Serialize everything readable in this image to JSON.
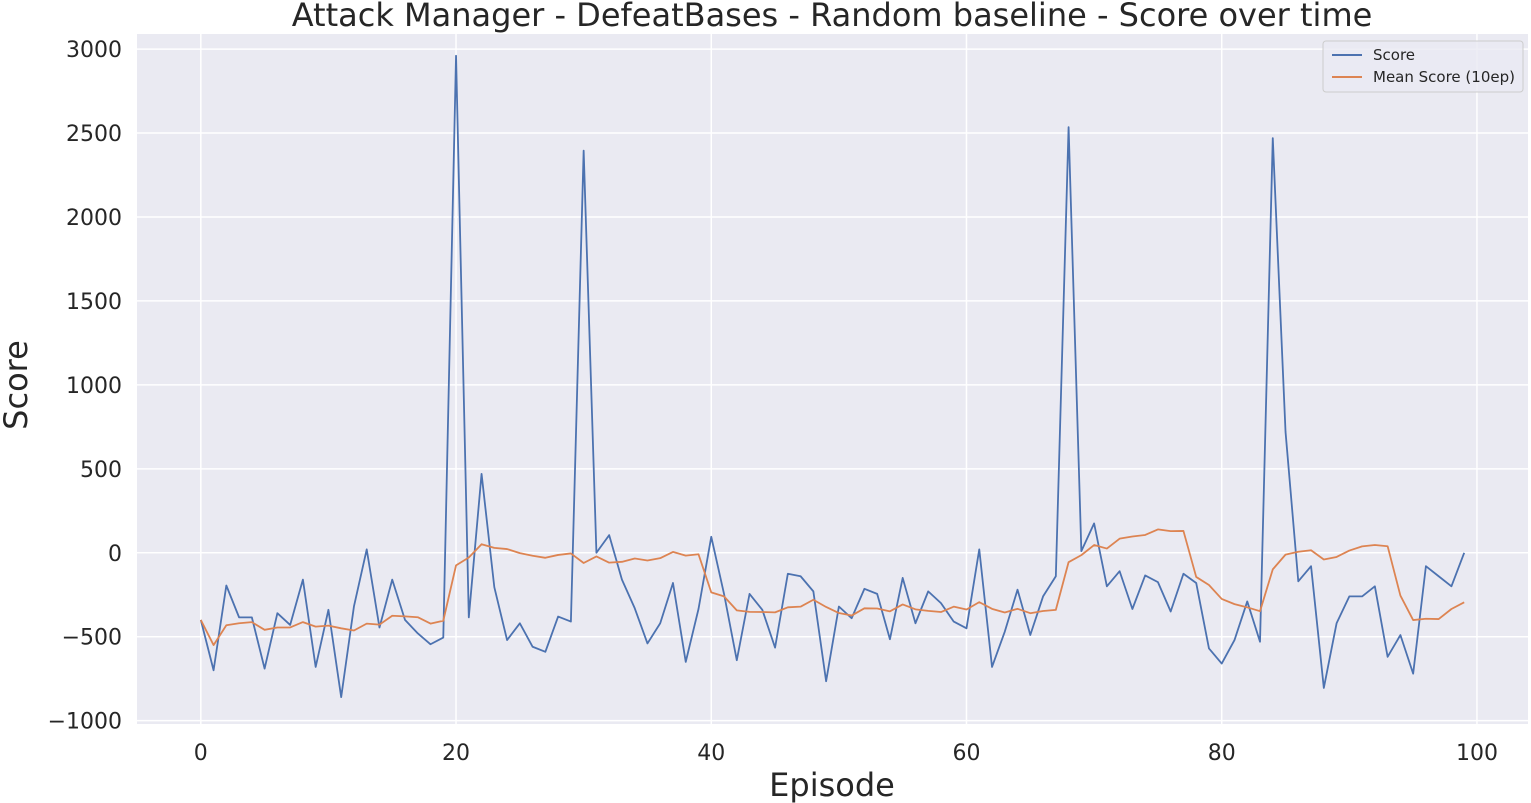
{
  "chart_data": {
    "type": "line",
    "title": "Attack Manager - DefeatBases - Random baseline - Score over time",
    "xlabel": "Episode",
    "ylabel": "Score",
    "xlim": [
      -5,
      104
    ],
    "ylim": [
      -1020,
      3090
    ],
    "xticks": [
      0,
      20,
      40,
      60,
      80,
      100
    ],
    "yticks": [
      -1000,
      -500,
      0,
      500,
      1000,
      1500,
      2000,
      2500,
      3000
    ],
    "xtick_labels": [
      "0",
      "20",
      "40",
      "60",
      "80",
      "100"
    ],
    "ytick_labels": [
      "−1000",
      "−500",
      "0",
      "500",
      "1000",
      "1500",
      "2000",
      "2500",
      "3000"
    ],
    "grid": true,
    "legend_position": "top-right",
    "background": "#eaeaf2",
    "series": [
      {
        "name": "Score",
        "color": "#4c72b0",
        "x": [
          0,
          1,
          2,
          3,
          4,
          5,
          6,
          7,
          8,
          9,
          10,
          11,
          12,
          13,
          14,
          15,
          16,
          17,
          18,
          19,
          20,
          21,
          22,
          23,
          24,
          25,
          26,
          27,
          28,
          29,
          30,
          31,
          32,
          33,
          34,
          35,
          36,
          37,
          38,
          39,
          40,
          41,
          42,
          43,
          44,
          45,
          46,
          47,
          48,
          49,
          50,
          51,
          52,
          53,
          54,
          55,
          56,
          57,
          58,
          59,
          60,
          61,
          62,
          63,
          64,
          65,
          66,
          67,
          68,
          69,
          70,
          71,
          72,
          73,
          74,
          75,
          76,
          77,
          78,
          79,
          80,
          81,
          82,
          83,
          84,
          85,
          86,
          87,
          88,
          89,
          90,
          91,
          92,
          93,
          94,
          95,
          96,
          97,
          98,
          99
        ],
        "values": [
          -400,
          -700,
          -195,
          -385,
          -385,
          -690,
          -360,
          -430,
          -160,
          -680,
          -340,
          -860,
          -320,
          20,
          -445,
          -160,
          -400,
          -480,
          -545,
          -505,
          2960,
          -385,
          470,
          -205,
          -520,
          -420,
          -560,
          -590,
          -380,
          -410,
          2395,
          0,
          105,
          -160,
          -330,
          -540,
          -420,
          -180,
          -650,
          -335,
          95,
          -245,
          -640,
          -245,
          -340,
          -565,
          -125,
          -140,
          -230,
          -765,
          -320,
          -390,
          -215,
          -245,
          -515,
          -150,
          -420,
          -230,
          -300,
          -410,
          -450,
          20,
          -680,
          -470,
          -220,
          -490,
          -260,
          -140,
          2535,
          10,
          175,
          -200,
          -110,
          -335,
          -135,
          -175,
          -350,
          -125,
          -180,
          -570,
          -660,
          -520,
          -290,
          -530,
          2470,
          720,
          -170,
          -80,
          -805,
          -420,
          -260,
          -260,
          -200,
          -620,
          -490,
          -720,
          -80,
          -140,
          -200,
          0
        ]
      },
      {
        "name": "Mean Score (10ep)",
        "color": "#dd8452",
        "x": [
          0,
          1,
          2,
          3,
          4,
          5,
          6,
          7,
          8,
          9,
          10,
          11,
          12,
          13,
          14,
          15,
          16,
          17,
          18,
          19,
          20,
          21,
          22,
          23,
          24,
          25,
          26,
          27,
          28,
          29,
          30,
          31,
          32,
          33,
          34,
          35,
          36,
          37,
          38,
          39,
          40,
          41,
          42,
          43,
          44,
          45,
          46,
          47,
          48,
          49,
          50,
          51,
          52,
          53,
          54,
          55,
          56,
          57,
          58,
          59,
          60,
          61,
          62,
          63,
          64,
          65,
          66,
          67,
          68,
          69,
          70,
          71,
          72,
          73,
          74,
          75,
          76,
          77,
          78,
          79,
          80,
          81,
          82,
          83,
          84,
          85,
          86,
          87,
          88,
          89,
          90,
          91,
          92,
          93,
          94,
          95,
          96,
          97,
          98,
          99
        ],
        "values": [
          -400,
          -550,
          -432,
          -420,
          -413,
          -459,
          -445,
          -445,
          -413,
          -440,
          -434,
          -450,
          -463,
          -422,
          -428,
          -375,
          -379,
          -384,
          -422,
          -405,
          -75,
          -28,
          51,
          29,
          22,
          -2,
          -18,
          -30,
          -13,
          -4,
          -61,
          -22,
          -59,
          -54,
          -34,
          -46,
          -32,
          5,
          -17,
          -9,
          -236,
          -260,
          -343,
          -352,
          -353,
          -355,
          -325,
          -321,
          -280,
          -323,
          -359,
          -374,
          -331,
          -332,
          -349,
          -308,
          -337,
          -346,
          -353,
          -321,
          -338,
          -294,
          -334,
          -356,
          -334,
          -360,
          -347,
          -340,
          -56,
          -14,
          46,
          25,
          84,
          97,
          106,
          139,
          129,
          130,
          -144,
          -192,
          -275,
          -306,
          -325,
          -348,
          -99,
          -11,
          6,
          15,
          -40,
          -25,
          13,
          38,
          46,
          39,
          -255,
          -401,
          -393,
          -395,
          -335,
          -295
        ]
      }
    ]
  }
}
